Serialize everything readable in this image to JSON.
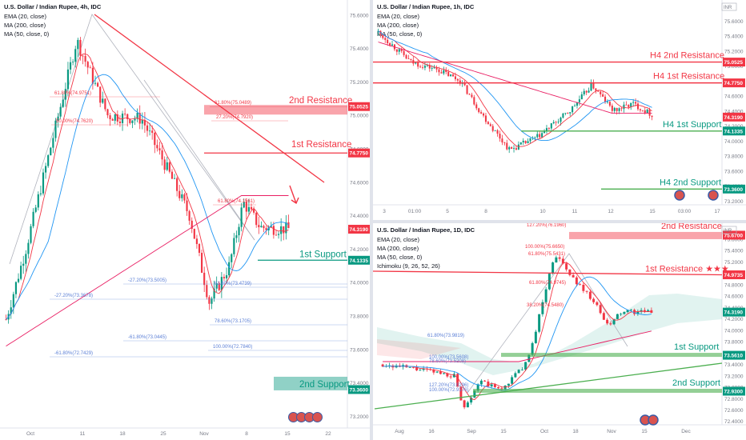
{
  "chart_data": [
    {
      "type": "candlestick",
      "title": "U.S. Dollar / Indian Rupee, 4h, IDC",
      "indicators": [
        "EMA (20, close)",
        "MA (200, close)",
        "MA (50, close, 0)"
      ],
      "x_ticks": [
        "Oct",
        "11",
        "18",
        "25",
        "Nov",
        "8",
        "15",
        "22"
      ],
      "y_ticks": [
        "73.2000",
        "73.4000",
        "73.6000",
        "73.8000",
        "74.0000",
        "74.2000",
        "74.4000",
        "74.6000",
        "74.8000",
        "75.0000",
        "75.2000",
        "75.4000",
        "75.6000"
      ],
      "ylim": [
        73.13,
        75.69
      ],
      "current_price": "74.3190",
      "levels": [
        {
          "label": "2nd Resistance",
          "value": 75.0525,
          "tag": "75.0525"
        },
        {
          "label": "1st Resistance",
          "value": 74.775,
          "tag": "74.7750"
        },
        {
          "label": "1st Support",
          "value": 74.1335,
          "tag": "74.1335"
        },
        {
          "label": "2nd Support",
          "value": 73.36,
          "tag": "73.3600"
        }
      ],
      "fib_labels": [
        "61.80%(75.0489)",
        "61.80%(74.9751)",
        "50.00%(74.7620)",
        "27.20%(74.7920)",
        "61.80%(74.1561)",
        "-27.20%(73.5005)",
        "61.80%(73.4739)",
        "-27.20%(73.3678)",
        "78.60%(73.1705)",
        "-61.80%(73.0445)",
        "100.00%(72.7840)",
        "-61.80%(72.7429)"
      ]
    },
    {
      "type": "candlestick",
      "title": "U.S. Dollar / Indian Rupee, 1h, IDC",
      "indicators": [
        "EMA (20, close)",
        "MA (200, close)",
        "MA (50, close, 0)"
      ],
      "x_ticks": [
        "3",
        "01:00",
        "5",
        "8",
        "10",
        "11",
        "12",
        "15",
        "03:00",
        "17"
      ],
      "y_ticks": [
        "73.2000",
        "73.4000",
        "73.6000",
        "73.8000",
        "74.0000",
        "74.2000",
        "74.4000",
        "74.6000",
        "74.8000",
        "75.0000",
        "75.2000",
        "75.4000",
        "75.6000",
        "75.8000"
      ],
      "ylim": [
        73.15,
        75.88
      ],
      "current_price": "74.3190",
      "levels": [
        {
          "label": "H4 2nd Resistance",
          "value": 75.0525,
          "tag": "75.0525"
        },
        {
          "label": "H4 1st Resistance",
          "value": 74.775,
          "tag": "74.7750"
        },
        {
          "label": "H4 1st Support",
          "value": 74.1335,
          "tag": "74.1335"
        },
        {
          "label": "H4 2nd Support",
          "value": 73.36,
          "tag": "73.3600"
        }
      ]
    },
    {
      "type": "candlestick",
      "title": "U.S. Dollar / Indian Rupee, 1D, IDC",
      "indicators": [
        "EMA (20, close)",
        "MA (200, close)",
        "MA (50, close, 0)",
        "Ichimoku (9, 26, 52, 26)"
      ],
      "x_ticks": [
        "Aug",
        "16",
        "Sep",
        "15",
        "Oct",
        "18",
        "Nov",
        "15",
        "Dec"
      ],
      "y_ticks": [
        "72.4000",
        "72.6000",
        "72.8000",
        "73.0000",
        "73.2000",
        "73.4000",
        "73.6000",
        "73.8000",
        "74.0000",
        "74.2000",
        "74.4000",
        "74.6000",
        "74.8000",
        "75.0000",
        "75.2000",
        "75.4000",
        "75.6000",
        "75.8000"
      ],
      "ylim": [
        72.34,
        75.88
      ],
      "current_price": "74.3190",
      "levels": [
        {
          "label": "2nd Resistance",
          "value": 75.67,
          "tag": "75.6700"
        },
        {
          "label": "1st Resistance ★★★",
          "value": 74.9735,
          "tag": "74.9735"
        },
        {
          "label": "1st Support",
          "value": 73.561,
          "tag": "73.5610"
        },
        {
          "label": "2nd Support",
          "value": 72.93,
          "tag": "72.9300"
        }
      ],
      "fib_labels": [
        "127.20%(76.1960)",
        "100.00%(75.6650)",
        "61.80%(75.5431)",
        "61.80%(74.9745)",
        "38.20%(74.5480)",
        "61.80%(73.9819)",
        "100.00%(73.5608)",
        "78.60%(73.5208)",
        "127.20%(73.0296)",
        "100.00%(72.9176)"
      ]
    }
  ],
  "colors": {
    "resistance": "#f23645",
    "support": "#089981",
    "support_line": "#4caf50",
    "up_candle": "#089981",
    "down_candle": "#f23645",
    "ema": "#f23645",
    "ma200": "#e91e63",
    "ma50": "#2196f3",
    "price_tag": "#f23645",
    "fib_line": "#5b7fd6"
  },
  "icons": [
    "logo-icon",
    "inr-icon"
  ],
  "inr_label": "INR"
}
